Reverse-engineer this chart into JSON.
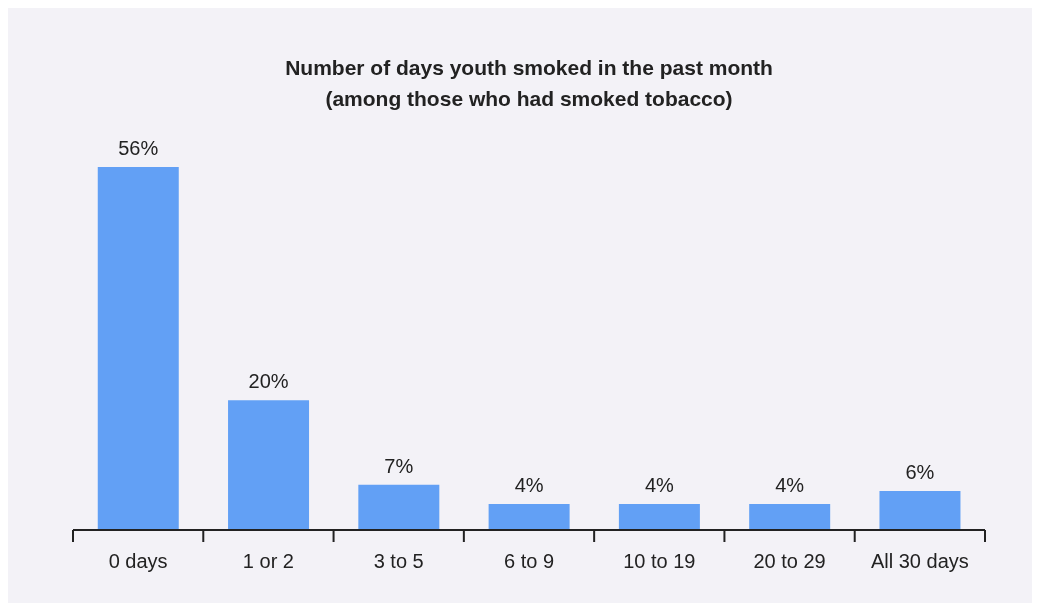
{
  "chart_data": {
    "type": "bar",
    "title": "Number of days youth smoked in the past month\n(among those who had smoked tobacco)",
    "categories": [
      "0 days",
      "1 or 2",
      "3 to 5",
      "6 to 9",
      "10 to 19",
      "20 to 29",
      "All 30 days"
    ],
    "values": [
      56,
      20,
      7,
      4,
      4,
      4,
      6
    ],
    "value_labels": [
      "56%",
      "20%",
      "7%",
      "4%",
      "4%",
      "4%",
      "6%"
    ],
    "color": "#62a0f5"
  }
}
